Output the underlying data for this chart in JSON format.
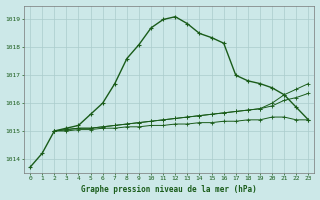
{
  "title": "Graphe pression niveau de la mer (hPa)",
  "bg_color": "#cce8e8",
  "grid_color": "#aacccc",
  "line_color_main": "#1a5c1a",
  "x_labels": [
    "0",
    "1",
    "2",
    "3",
    "4",
    "5",
    "6",
    "7",
    "8",
    "9",
    "10",
    "11",
    "12",
    "13",
    "14",
    "15",
    "16",
    "17",
    "18",
    "19",
    "20",
    "21",
    "22",
    "23"
  ],
  "ylim": [
    1013.5,
    1019.5
  ],
  "yticks": [
    1014,
    1015,
    1016,
    1017,
    1018,
    1019
  ],
  "series": {
    "main": [
      1013.7,
      1014.2,
      1015.0,
      1015.1,
      1015.2,
      1015.6,
      1016.0,
      1016.7,
      1017.6,
      1018.1,
      1018.7,
      1019.0,
      1019.1,
      1018.85,
      1018.5,
      1018.35,
      1018.15,
      1017.0,
      1016.8,
      1016.7,
      1016.55,
      1016.3,
      1015.85,
      1015.4
    ],
    "fan1": [
      null,
      null,
      1015.0,
      1015.05,
      1015.1,
      1015.1,
      1015.15,
      1015.2,
      1015.25,
      1015.3,
      1015.35,
      1015.4,
      1015.45,
      1015.5,
      1015.55,
      1015.6,
      1015.65,
      1015.7,
      1015.75,
      1015.8,
      1016.0,
      1016.3,
      1016.5,
      1016.7
    ],
    "fan2": [
      null,
      null,
      1015.0,
      1015.05,
      1015.1,
      1015.1,
      1015.15,
      1015.2,
      1015.25,
      1015.3,
      1015.35,
      1015.4,
      1015.45,
      1015.5,
      1015.55,
      1015.6,
      1015.65,
      1015.7,
      1015.75,
      1015.8,
      1015.9,
      1016.1,
      1016.2,
      1016.35
    ],
    "fan3": [
      null,
      null,
      1015.0,
      1015.0,
      1015.05,
      1015.05,
      1015.1,
      1015.1,
      1015.15,
      1015.15,
      1015.2,
      1015.2,
      1015.25,
      1015.25,
      1015.3,
      1015.3,
      1015.35,
      1015.35,
      1015.4,
      1015.4,
      1015.5,
      1015.5,
      1015.4,
      1015.4
    ]
  }
}
